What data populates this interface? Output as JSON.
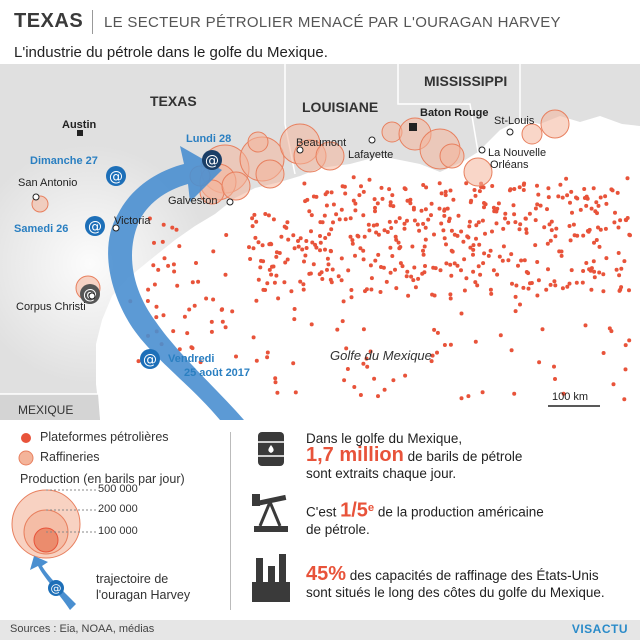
{
  "header": {
    "tag": "TEXAS",
    "title": "LE SECTEUR PÉTROLIER MENACÉ PAR L'OURAGAN HARVEY"
  },
  "subtitle": "L'industrie du pétrole dans le golfe du Mexique.",
  "map": {
    "states": [
      "TEXAS",
      "LOUISIANE",
      "MISSISSIPPI"
    ],
    "country": "MEXIQUE",
    "sea": "Golfe du Mexique",
    "scale": "100 km",
    "cities": {
      "austin": "Austin",
      "san_antonio": "San Antonio",
      "victoria": "Victoria",
      "corpus_christi": "Corpus Christi",
      "galveston": "Galveston",
      "beaumont": "Beaumont",
      "lafayette": "Lafayette",
      "baton_rouge": "Baton Rouge",
      "st_louis": "St-Louis",
      "nouvelle_orleans_1": "La Nouvelle",
      "nouvelle_orleans_2": "Orléans"
    },
    "track": {
      "vendredi": "Vendredi",
      "vendredi_date": "25 août 2017",
      "samedi": "Samedi 26",
      "dimanche": "Dimanche 27",
      "lundi": "Lundi 28"
    }
  },
  "legend": {
    "platforms": "Plateformes pétrolières",
    "refineries": "Raffineries",
    "production_title": "Production (en barils par jour)",
    "p500": "500 000",
    "p200": "200 000",
    "p100": "100 000",
    "trajectory_1": "trajectoire de",
    "trajectory_2": "l'ouragan Harvey"
  },
  "stats": {
    "s1_a": "Dans le golfe du Mexique,",
    "s1_big": "1,7 million",
    "s1_b": " de barils de pétrole",
    "s1_c": "sont extraits chaque jour.",
    "s2_a": "C'est ",
    "s2_big": "1/5",
    "s2_sup": "e",
    "s2_b": " de la production américaine",
    "s2_c": "de pétrole.",
    "s3_big": "45%",
    "s3_a": " des capacités de raffinage des États-Unis",
    "s3_b": "sont situés le long des côtes du golfe du Mexique."
  },
  "footer": {
    "sources": "Sources : Eia, NOAA, médias",
    "brand": "VISACTU"
  },
  "colors": {
    "platform": "#e8533a",
    "refinery_fill": "#f4b49a",
    "refinery_stroke": "#e8805f",
    "track": "#4a8fd0",
    "land": "#e0e0e0",
    "sea": "#ffffff"
  }
}
